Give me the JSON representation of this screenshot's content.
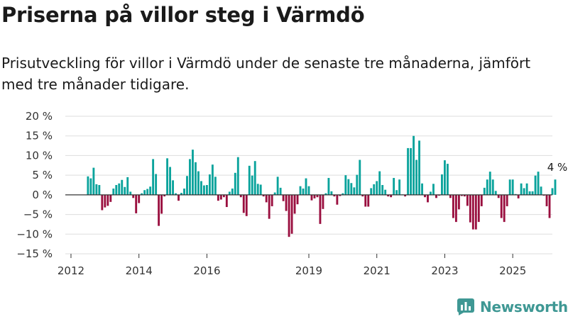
{
  "title": "Priserna på villor steg i Värmdö",
  "subtitle": "Prisutveckling för villor i Värmdö under de senaste tre månaderna, jämfört med tre månader tidigare.",
  "brand": {
    "name": "Newsworthy",
    "icon": "newsworthy-logo-icon"
  },
  "colors": {
    "positive": "#0aa39c",
    "negative": "#9a0f3f",
    "grid": "#dddddd",
    "axis": "#333333",
    "brand": "#3f9894"
  },
  "chart_data": {
    "type": "bar",
    "title": "",
    "xlabel": "",
    "ylabel": "",
    "ylim": [
      -15,
      20
    ],
    "grid": true,
    "legend": "none",
    "y_ticks": [
      -15,
      -10,
      -5,
      0,
      5,
      10,
      15,
      20
    ],
    "y_tick_labels": [
      "−15 %",
      "−10 %",
      "−5 %",
      "0 %",
      "5 %",
      "10 %",
      "15 %",
      "20 %"
    ],
    "x_ticks": [
      "2012",
      "2014",
      "2016",
      "2019",
      "2021",
      "2023",
      "2025"
    ],
    "x_range": [
      "2011-10",
      "2026-03"
    ],
    "start_month": "2012-07",
    "values": [
      4.7,
      4.2,
      6.9,
      2.7,
      2.5,
      -3.9,
      -3.2,
      -2.8,
      -1.8,
      1.6,
      2.5,
      2.9,
      3.8,
      2,
      4.5,
      0.8,
      -0.8,
      -4.7,
      -2.1,
      0.4,
      1.2,
      1.5,
      2.1,
      9.1,
      5.3,
      -7.9,
      -4.8,
      -0.4,
      9.3,
      7.1,
      3.7,
      0.4,
      -1.5,
      0.5,
      1.6,
      4.8,
      9.1,
      11.5,
      8.3,
      6,
      3.5,
      2.4,
      2.5,
      5.2,
      7.7,
      4.6,
      -1.5,
      -1.2,
      -0.6,
      -3.1,
      0.8,
      1.6,
      5.6,
      9.6,
      -0.6,
      -4.6,
      -5.4,
      7.4,
      4.9,
      8.6,
      2.8,
      2.6,
      -0.4,
      -1.9,
      -6.1,
      -2.9,
      0.6,
      4.6,
      1.8,
      -1.6,
      -4.1,
      -10.7,
      -9.9,
      -4.8,
      -2.4,
      2.2,
      1.6,
      4.2,
      2.2,
      -1.4,
      -0.9,
      -0.6,
      -7.4,
      -3.6,
      0.4,
      4.3,
      0.9,
      -0.4,
      -2.5,
      -0.3,
      0.4,
      5,
      4,
      3,
      1.9,
      5.1,
      8.9,
      -0.4,
      -3,
      -3,
      1.7,
      2.7,
      3.5,
      6,
      2.5,
      1.3,
      -0.4,
      -0.6,
      4.3,
      1.2,
      3.9,
      0.1,
      -0.4,
      11.9,
      11.9,
      15,
      8.9,
      13.8,
      2.9,
      -0.6,
      -1.9,
      0.8,
      2.8,
      -0.8,
      -0.2,
      5.2,
      8.8,
      7.9,
      -0.8,
      -5.9,
      -6.9,
      -3.7,
      -0.3,
      -0.4,
      -2.8,
      -7,
      -8.8,
      -8.8,
      -6.9,
      -2.9,
      1.8,
      3.9,
      5.9,
      3.9,
      1,
      -0.8,
      -5.9,
      -6.9,
      -2.9,
      3.9,
      3.9,
      0.2,
      -0.9,
      2.9,
      1.7,
      2.9,
      0.9,
      0.9,
      4.9,
      5.9,
      2.1,
      -0.2,
      -2.9,
      -5.9,
      1.7,
      3.9
    ],
    "annotations": [
      {
        "label": "4 %",
        "at": "latest"
      }
    ]
  }
}
